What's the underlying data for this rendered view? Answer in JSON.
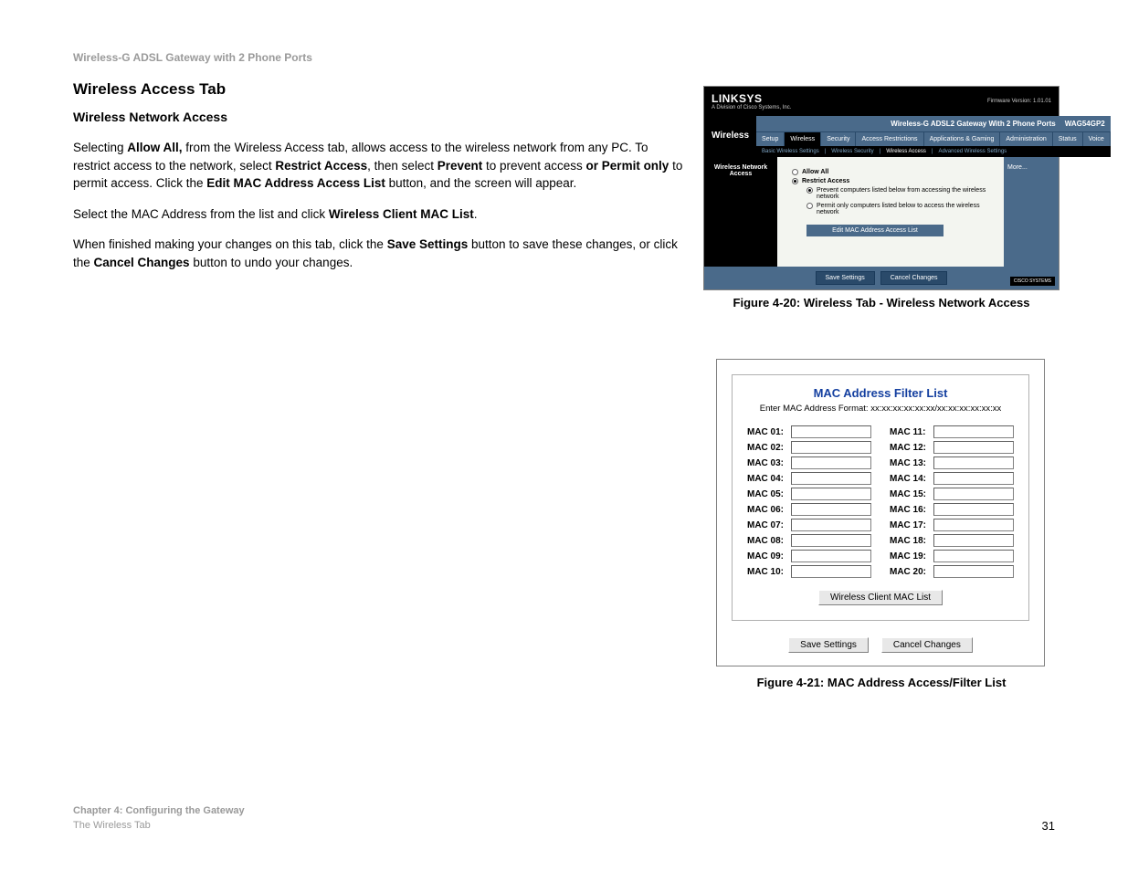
{
  "header": {
    "product": "Wireless-G ADSL Gateway with 2 Phone Ports"
  },
  "main": {
    "section_title": "Wireless Access Tab",
    "subsection_title": "Wireless Network Access",
    "p1_a": "Selecting ",
    "p1_b": "Allow All,",
    "p1_c": " from the Wireless Access tab, allows access to the wireless network from any PC. To restrict access to the network, select ",
    "p1_d": "Restrict Access",
    "p1_e": ", then select ",
    "p1_f": "Prevent",
    "p1_g": " to prevent access ",
    "p1_h": "or Permit only",
    "p1_i": " to permit access. Click the ",
    "p1_j": "Edit MAC Address Access List",
    "p1_k": " button, and the screen will appear.",
    "p2_a": "Select the MAC Address from the list and click ",
    "p2_b": "Wireless Client MAC List",
    "p2_c": ".",
    "p3_a": "When finished making your changes on this tab, click the ",
    "p3_b": "Save Settings",
    "p3_c": " button to save these changes, or click the ",
    "p3_d": "Cancel Changes",
    "p3_e": " button to undo your changes."
  },
  "fig20": {
    "caption": "Figure 4-20: Wireless Tab - Wireless Network Access",
    "brand": "LINKSYS",
    "brand_sub": "A Division of Cisco Systems, Inc.",
    "firmware": "Firmware Version: 1.01.01",
    "model_title": "Wireless-G ADSL2 Gateway With 2 Phone Ports",
    "model_code": "WAG54GP2",
    "section": "Wireless",
    "sidebar_label": "Wireless Network Access",
    "tabs": [
      "Setup",
      "Wireless",
      "Security",
      "Access Restrictions",
      "Applications & Gaming",
      "Administration",
      "Status",
      "Voice"
    ],
    "active_tab_index": 1,
    "subtabs": [
      "Basic Wireless Settings",
      "Wireless Security",
      "Wireless Access",
      "Advanced Wireless Settings"
    ],
    "active_subtab_index": 2,
    "right_more": "More...",
    "radios": {
      "allow_all": "Allow All",
      "restrict": "Restrict Access",
      "prevent": "Prevent computers listed below from accessing the wireless network",
      "permit": "Permit only computers listed below to access the wireless network",
      "selected_main": "restrict",
      "selected_sub": "prevent"
    },
    "edit_button": "Edit MAC Address Access List",
    "save": "Save Settings",
    "cancel": "Cancel Changes",
    "cisco": "CISCO SYSTEMS",
    "colors": {
      "header_bg": "#000000",
      "tab_bg": "#4a6a8a",
      "content_bg": "#f3f5f0"
    }
  },
  "fig21": {
    "caption": "Figure 4-21: MAC Address Access/Filter List",
    "title": "MAC Address Filter List",
    "title_color": "#1540a0",
    "subtitle": "Enter MAC Address Format: xx:xx:xx:xx:xx:xx/xx:xx:xx:xx:xx:xx",
    "labels_left": [
      "MAC 01:",
      "MAC 02:",
      "MAC 03:",
      "MAC 04:",
      "MAC 05:",
      "MAC 06:",
      "MAC 07:",
      "MAC 08:",
      "MAC 09:",
      "MAC 10:"
    ],
    "labels_right": [
      "MAC 11:",
      "MAC 12:",
      "MAC 13:",
      "MAC 14:",
      "MAC 15:",
      "MAC 16:",
      "MAC 17:",
      "MAC 18:",
      "MAC 19:",
      "MAC 20:"
    ],
    "values_left": [
      "",
      "",
      "",
      "",
      "",
      "",
      "",
      "",
      "",
      ""
    ],
    "values_right": [
      "",
      "",
      "",
      "",
      "",
      "",
      "",
      "",
      "",
      ""
    ],
    "client_btn": "Wireless Client MAC List",
    "save": "Save Settings",
    "cancel": "Cancel Changes"
  },
  "footer": {
    "line1": "Chapter 4: Configuring the Gateway",
    "line2": "The Wireless Tab",
    "page_number": "31"
  }
}
